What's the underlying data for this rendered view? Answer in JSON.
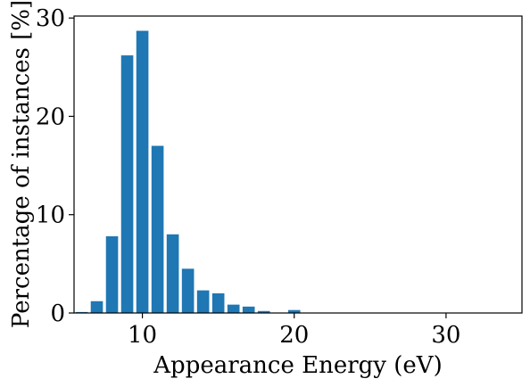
{
  "chart_data": {
    "type": "bar",
    "title": "",
    "xlabel": "Appearance Energy (eV)",
    "ylabel": "Percentage of instances [%]",
    "xlim": [
      5.5,
      35
    ],
    "ylim": [
      0,
      30.2
    ],
    "xticks": [
      10,
      20,
      30
    ],
    "yticks": [
      0,
      10,
      20,
      30
    ],
    "bar_width": 0.8,
    "bar_color": "#1f77b4",
    "grid": false,
    "legend": "none",
    "x": [
      6,
      7,
      8,
      9,
      10,
      11,
      12,
      13,
      14,
      15,
      16,
      17,
      18,
      20
    ],
    "values": [
      0.1,
      1.2,
      7.8,
      26.2,
      28.7,
      17.0,
      8.0,
      4.5,
      2.3,
      2.0,
      0.85,
      0.65,
      0.2,
      0.3
    ]
  }
}
